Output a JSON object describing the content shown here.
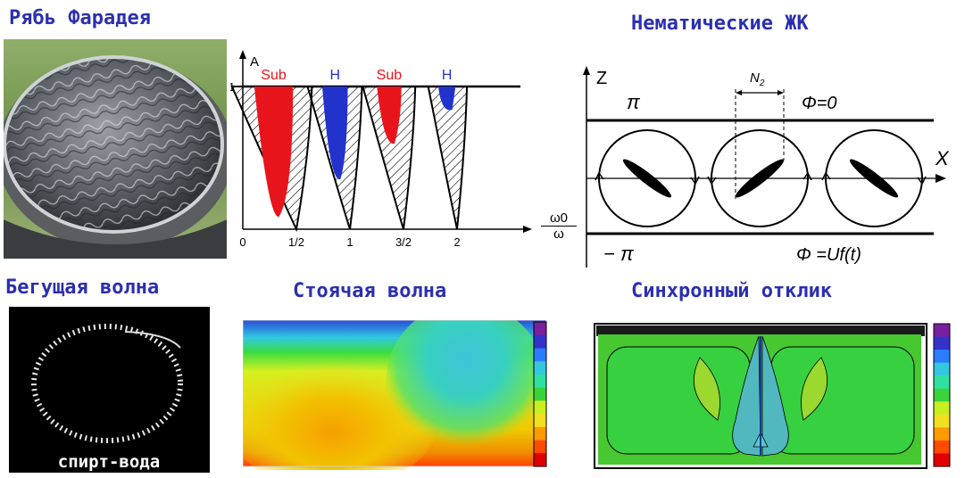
{
  "titles": {
    "faraday": "Рябь Фарадея",
    "nematic": "Нематические ЖК",
    "travel": "Бегущая волна",
    "standing": "Стоячая волна",
    "sync": "Синхронный отклик"
  },
  "stability": {
    "y_axis": "A",
    "y_tick": "1",
    "x_ticks": [
      "0",
      "1/2",
      "1",
      "3/2",
      "2"
    ],
    "x_label_num": "ω0",
    "x_label_den": "ω",
    "tongues": [
      {
        "label": "Sub",
        "center": 0.5
      },
      {
        "label": "H",
        "center": 1
      },
      {
        "label": "Sub",
        "center": 1.5
      },
      {
        "label": "H",
        "center": 2
      }
    ],
    "colors": {
      "sub": "#e8141c",
      "h": "#2233cc"
    }
  },
  "nematic": {
    "z_label": "Z",
    "x_label": "X",
    "n2_label": "N",
    "n2_sub": "2",
    "pi_top": "π",
    "pi_bottom": "− π",
    "phi_top": "Φ=0",
    "phi_bottom": "Φ =Uf(t)"
  },
  "photo_caption": "спирт-вода",
  "colorbar": [
    "#7a1fa0",
    "#3333cc",
    "#2a7dff",
    "#33c7e0",
    "#30e0a0",
    "#3ad43a",
    "#c8f020",
    "#f0e020",
    "#ff9a00",
    "#ff4a00",
    "#e00000"
  ]
}
